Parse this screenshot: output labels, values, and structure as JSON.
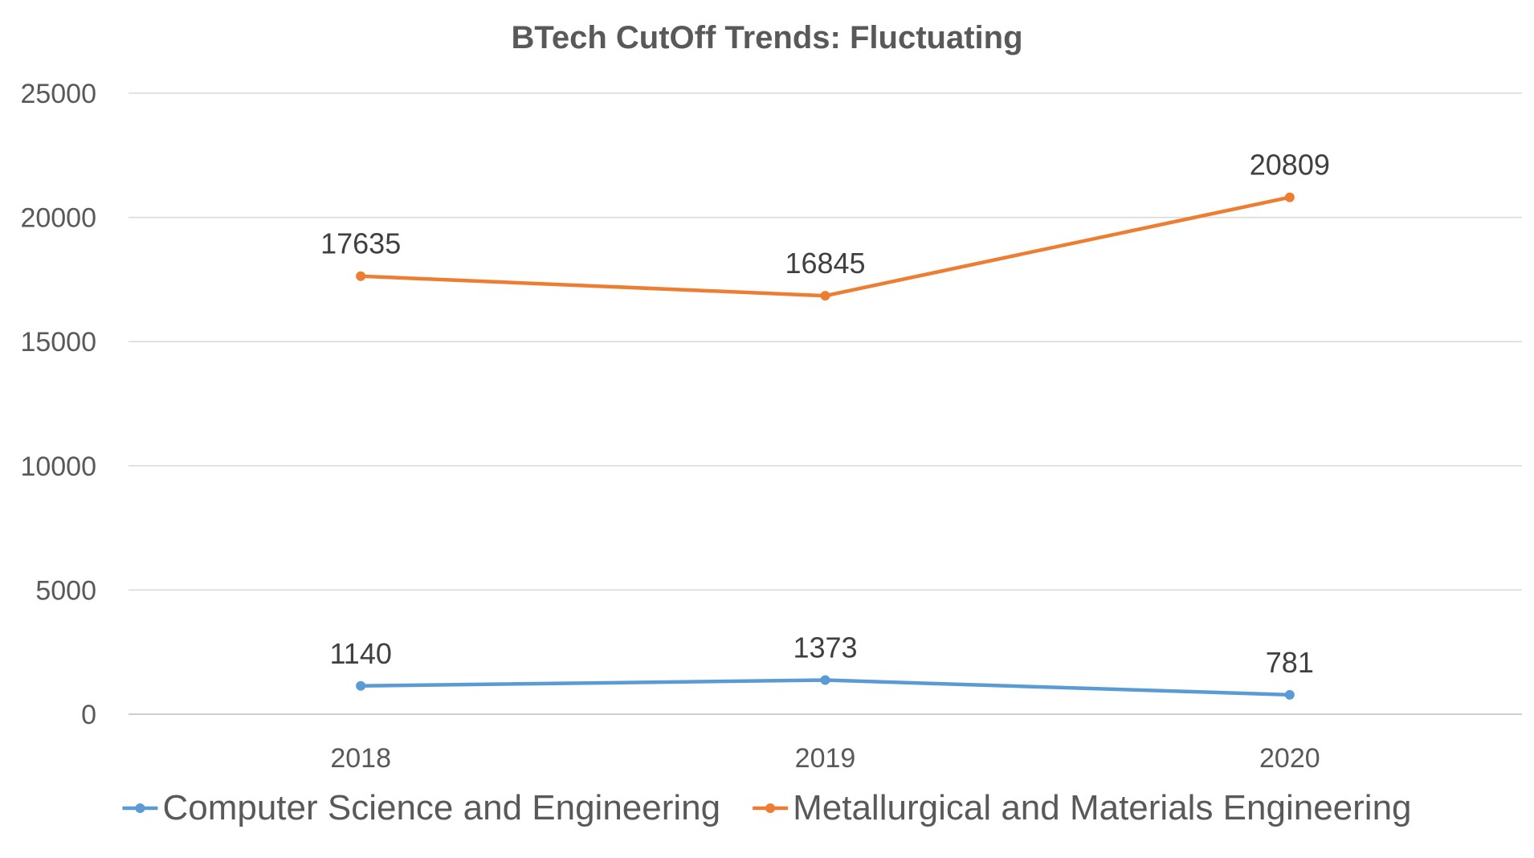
{
  "chart_data": {
    "type": "line",
    "title": "BTech CutOff Trends: Fluctuating",
    "xlabel": "",
    "ylabel": "",
    "categories": [
      "2018",
      "2019",
      "2020"
    ],
    "ylim": [
      0,
      25000
    ],
    "yticks": [
      0,
      5000,
      10000,
      15000,
      20000,
      25000
    ],
    "ytick_labels": [
      "0",
      "5000",
      "10000",
      "15000",
      "20000",
      "25000"
    ],
    "grid": true,
    "legend_position": "bottom",
    "series": [
      {
        "name": "Computer Science and Engineering",
        "color": "#5B9BD5",
        "values": [
          1140,
          1373,
          781
        ],
        "labels": [
          "1140",
          "1373",
          "781"
        ]
      },
      {
        "name": "Metallurgical and Materials Engineering",
        "color": "#ED7D31",
        "values": [
          17635,
          16845,
          20809
        ],
        "labels": [
          "17635",
          "16845",
          "20809"
        ]
      }
    ],
    "colors": {
      "grid": "#D9D9D9",
      "axis": "#BFBFBF",
      "title": "#595959",
      "tick_text": "#595959",
      "data_label": "#404040",
      "legend_text": "#595959"
    }
  }
}
